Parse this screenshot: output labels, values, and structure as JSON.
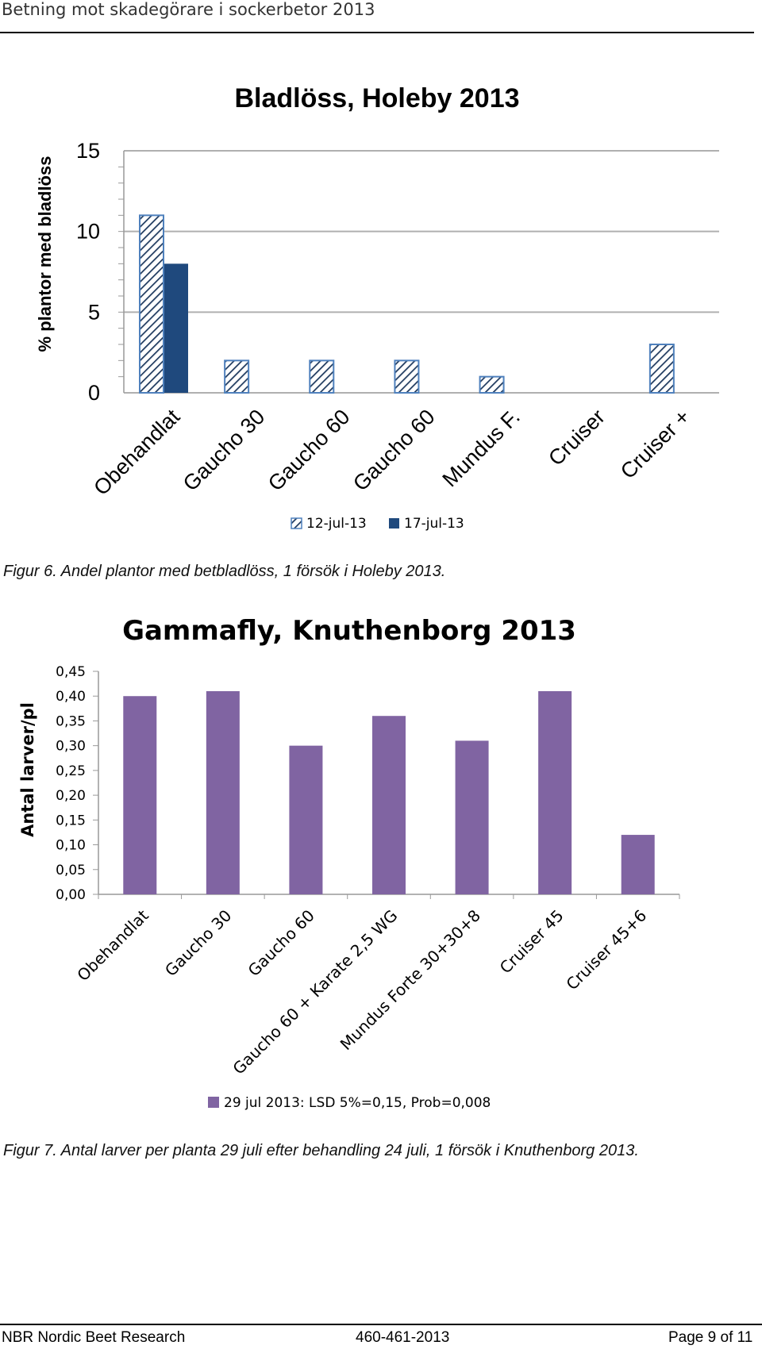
{
  "header": {
    "title": "Betning mot skadegörare i sockerbetor 2013"
  },
  "figure6": {
    "caption": "Figur 6. Andel plantor med betbladlöss, 1 försök i Holeby 2013."
  },
  "figure7": {
    "caption": "Figur 7. Antal larver per planta 29 juli efter behandling 24 juli, 1 försök i Knuthenborg 2013."
  },
  "footer": {
    "org": "NBR Nordic Beet Research",
    "code": "460-461-2013",
    "page": "Page 9 of 11"
  },
  "colors": {
    "chart1_series1_stroke": "#4f81bd",
    "chart1_series2_fill": "#1f497d",
    "chart2_bar_fill": "#8064a2",
    "gridline": "#b0b0b0"
  },
  "chart_data": [
    {
      "type": "bar",
      "title": "Bladlöss, Holeby 2013",
      "xlabel": "",
      "ylabel": "% plantor med bladlöss",
      "ylim": [
        0,
        15
      ],
      "yticks": [
        "0",
        "5",
        "10",
        "15"
      ],
      "grid": true,
      "legend_position": "bottom",
      "categories": [
        "Obehandlat",
        "Gaucho 30",
        "Gaucho 60",
        "Gaucho 60",
        "Mundus F.",
        "Cruiser",
        "Cruiser +"
      ],
      "series": [
        {
          "name": "12-jul-13",
          "pattern": "hatched",
          "values": [
            11,
            2,
            2,
            2,
            1,
            0,
            3
          ]
        },
        {
          "name": "17-jul-13",
          "pattern": "solid",
          "values": [
            8,
            null,
            null,
            null,
            null,
            null,
            null
          ]
        }
      ]
    },
    {
      "type": "bar",
      "title": "Gammafly, Knuthenborg 2013",
      "xlabel": "",
      "ylabel": "Antal larver/pl",
      "ylim": [
        0,
        0.45
      ],
      "yticks": [
        "0,00",
        "0,05",
        "0,10",
        "0,15",
        "0,20",
        "0,25",
        "0,30",
        "0,35",
        "0,40",
        "0,45"
      ],
      "grid": false,
      "legend_position": "bottom",
      "categories": [
        "Obehandlat",
        "Gaucho 30",
        "Gaucho 60",
        "Gaucho 60 + Karate 2,5 WG",
        "Mundus Forte 30+30+8",
        "Cruiser 45",
        "Cruiser 45+6"
      ],
      "series": [
        {
          "name": "29 jul 2013: LSD 5%=0,15, Prob=0,008",
          "values": [
            0.4,
            0.41,
            0.3,
            0.36,
            0.31,
            0.41,
            0.12
          ]
        }
      ]
    }
  ]
}
